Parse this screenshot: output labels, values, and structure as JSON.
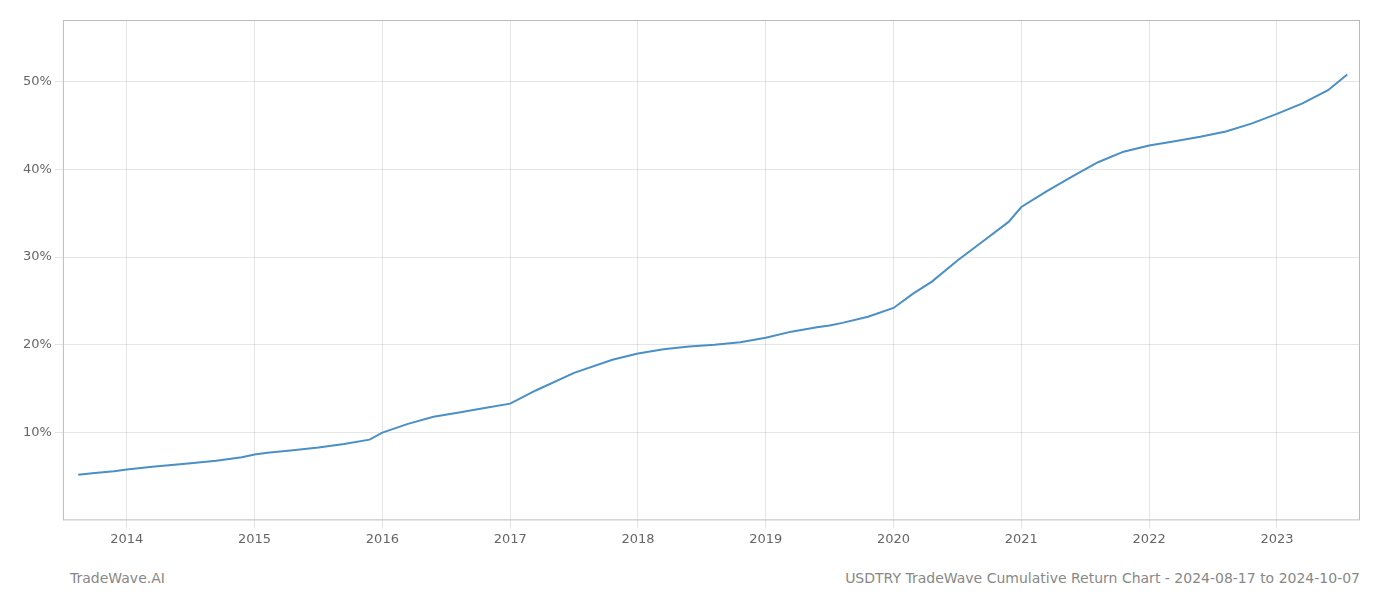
{
  "chart_data": {
    "type": "line",
    "annotations": [
      "TradeWave.AI",
      "USDTRY TradeWave Cumulative Return Chart - 2024-08-17 to 2024-10-07"
    ],
    "color": "#4a90c4",
    "x": [
      2013.62,
      2013.75,
      2013.9,
      2014.0,
      2014.2,
      2014.5,
      2014.7,
      2014.9,
      2015.0,
      2015.1,
      2015.3,
      2015.5,
      2015.7,
      2015.9,
      2016.0,
      2016.2,
      2016.4,
      2016.6,
      2016.8,
      2017.0,
      2017.2,
      2017.5,
      2017.8,
      2018.0,
      2018.2,
      2018.4,
      2018.6,
      2018.8,
      2019.0,
      2019.2,
      2019.4,
      2019.5,
      2019.6,
      2019.8,
      2020.0,
      2020.15,
      2020.3,
      2020.5,
      2020.7,
      2020.9,
      2021.0,
      2021.2,
      2021.4,
      2021.6,
      2021.8,
      2022.0,
      2022.2,
      2022.4,
      2022.6,
      2022.8,
      2023.0,
      2023.2,
      2023.4,
      2023.55
    ],
    "values": [
      0.052,
      0.054,
      0.056,
      0.058,
      0.061,
      0.065,
      0.068,
      0.072,
      0.075,
      0.077,
      0.08,
      0.083,
      0.087,
      0.092,
      0.1,
      0.11,
      0.118,
      0.123,
      0.128,
      0.133,
      0.148,
      0.168,
      0.183,
      0.19,
      0.195,
      0.198,
      0.2,
      0.203,
      0.208,
      0.215,
      0.22,
      0.222,
      0.225,
      0.232,
      0.242,
      0.258,
      0.272,
      0.296,
      0.318,
      0.34,
      0.357,
      0.375,
      0.392,
      0.408,
      0.42,
      0.427,
      0.432,
      0.437,
      0.443,
      0.452,
      0.463,
      0.475,
      0.49,
      0.508
    ],
    "xlim": [
      2013.5,
      2023.65
    ],
    "xticks": [
      2014,
      2015,
      2016,
      2017,
      2018,
      2019,
      2020,
      2021,
      2022,
      2023
    ],
    "ylim": [
      0.0,
      0.57
    ],
    "yticks": [
      {
        "value": 0.1,
        "label": "10%"
      },
      {
        "value": 0.2,
        "label": "20%"
      },
      {
        "value": 0.3,
        "label": "30%"
      },
      {
        "value": 0.4,
        "label": "40%"
      },
      {
        "value": 0.5,
        "label": "50%"
      }
    ],
    "grid": true
  }
}
